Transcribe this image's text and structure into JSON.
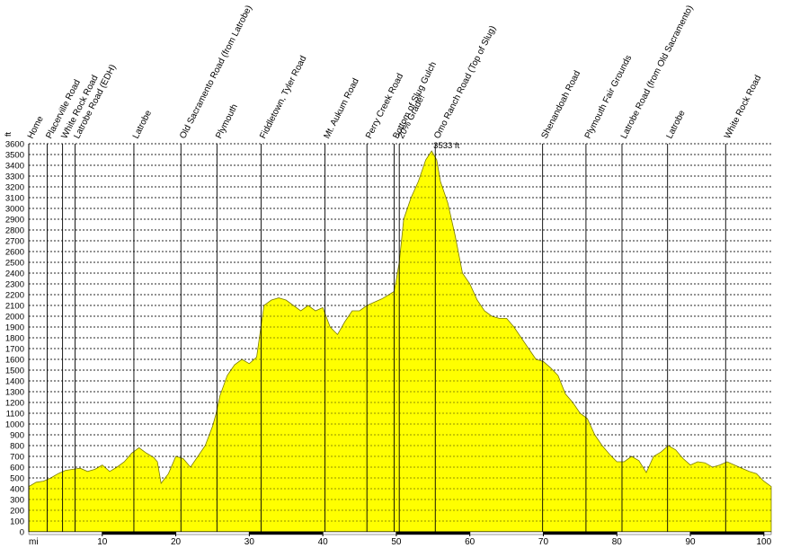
{
  "chart_data": {
    "type": "area",
    "title": "",
    "xlabel": "mi",
    "ylabel": "ft",
    "xlim": [
      0,
      101
    ],
    "ylim": [
      0,
      3600
    ],
    "x_ticks": [
      10,
      20,
      30,
      40,
      50,
      60,
      70,
      80,
      90,
      100
    ],
    "y_ticks": [
      0,
      100,
      200,
      300,
      400,
      500,
      600,
      700,
      800,
      900,
      1000,
      1100,
      1200,
      1300,
      1400,
      1500,
      1600,
      1700,
      1800,
      1900,
      2000,
      2100,
      2200,
      2300,
      2400,
      2500,
      2600,
      2700,
      2800,
      2900,
      3000,
      3100,
      3200,
      3300,
      3400,
      3500,
      3600
    ],
    "grid": true,
    "fill_color": "#ffff00",
    "grid_color": "#000000",
    "marker_color": "#000000",
    "peak_label": "3533 ft",
    "peak": {
      "x": 54.8,
      "y": 3533
    },
    "markers": [
      {
        "mile": 0.0,
        "label": "Home"
      },
      {
        "mile": 2.5,
        "label": "Placerville Road"
      },
      {
        "mile": 4.6,
        "label": "White Rock Road"
      },
      {
        "mile": 6.3,
        "label": "Latrobe Road (EDH)"
      },
      {
        "mile": 14.3,
        "label": "Latrobe"
      },
      {
        "mile": 20.7,
        "label": "Old Sacramento Road (from Latrobe)"
      },
      {
        "mile": 25.6,
        "label": "Plymouth"
      },
      {
        "mile": 31.6,
        "label": "Fiddletown, Tyler Road"
      },
      {
        "mile": 40.3,
        "label": "Mt. Aukum Road"
      },
      {
        "mile": 46.0,
        "label": "Perry Creek Road"
      },
      {
        "mile": 49.7,
        "label": "Bottom of Slug Gulch"
      },
      {
        "mile": 50.4,
        "label": "20% Grade!"
      },
      {
        "mile": 55.3,
        "label": "Omo Ranch Road (Top of Slug)"
      },
      {
        "mile": 69.9,
        "label": "Shenandoah Road"
      },
      {
        "mile": 75.8,
        "label": "Plymouth Fair Grounds"
      },
      {
        "mile": 80.7,
        "label": "Latrobe Road (from Old Sacramento)"
      },
      {
        "mile": 86.9,
        "label": "Latrobe"
      },
      {
        "mile": 94.8,
        "label": "White Rock Road"
      }
    ],
    "x": [
      0,
      1,
      2,
      3,
      4,
      5,
      6,
      7,
      8,
      9,
      10,
      11,
      12,
      13,
      14,
      15,
      16,
      17,
      17.5,
      18,
      19,
      20,
      21,
      22,
      23,
      24,
      25,
      25.5,
      26,
      27,
      28,
      29,
      30,
      31,
      32,
      33,
      34,
      35,
      36,
      37,
      38,
      39,
      40,
      41,
      42,
      43,
      44,
      45,
      46,
      47,
      48,
      49,
      49.7,
      50.4,
      51,
      52,
      53,
      54,
      54.8,
      55.5,
      56,
      57,
      58,
      59,
      60,
      61,
      62,
      63,
      64,
      65,
      66,
      67,
      68,
      69,
      70,
      71,
      72,
      73,
      74,
      75,
      76,
      77,
      78,
      79,
      80,
      81,
      82,
      83,
      84,
      85,
      86,
      87,
      88,
      89,
      90,
      91,
      92,
      93,
      94,
      95,
      96,
      97,
      98,
      99,
      100,
      101
    ],
    "y": [
      420,
      460,
      470,
      500,
      540,
      570,
      580,
      590,
      560,
      580,
      620,
      560,
      600,
      650,
      730,
      780,
      730,
      690,
      650,
      450,
      540,
      700,
      680,
      600,
      700,
      800,
      980,
      1100,
      1260,
      1450,
      1550,
      1600,
      1560,
      1620,
      2100,
      2150,
      2170,
      2150,
      2100,
      2050,
      2100,
      2050,
      2080,
      1900,
      1830,
      1950,
      2050,
      2050,
      2100,
      2130,
      2160,
      2200,
      2230,
      2500,
      2900,
      3100,
      3250,
      3450,
      3533,
      3450,
      3250,
      3050,
      2750,
      2400,
      2300,
      2150,
      2050,
      2000,
      1980,
      1980,
      1900,
      1800,
      1700,
      1600,
      1580,
      1520,
      1450,
      1280,
      1200,
      1100,
      1050,
      900,
      800,
      720,
      650,
      650,
      700,
      660,
      550,
      700,
      740,
      800,
      760,
      680,
      620,
      650,
      640,
      600,
      620,
      650,
      620,
      590,
      560,
      540,
      470,
      420
    ]
  }
}
